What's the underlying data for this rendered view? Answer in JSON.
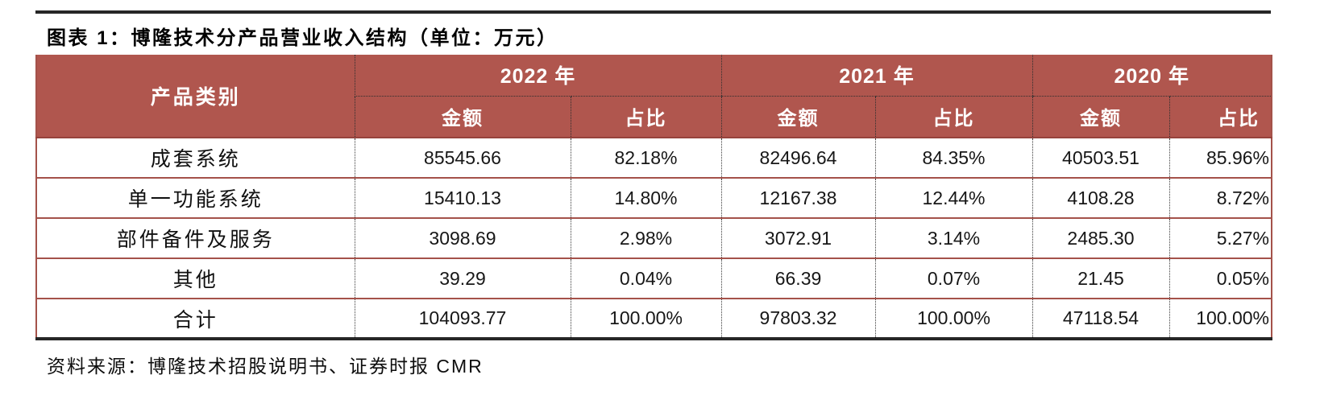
{
  "title": "图表 1：博隆技术分产品营业收入结构（单位：万元）",
  "source": "资料来源：博隆技术招股说明书、证券时报 CMR",
  "table": {
    "category_header": "产品类别",
    "years": [
      {
        "label": "2022 年",
        "amount_header": "金额",
        "share_header": "占比"
      },
      {
        "label": "2021 年",
        "amount_header": "金额",
        "share_header": "占比"
      },
      {
        "label": "2020 年",
        "amount_header": "金额",
        "share_header": "占比"
      }
    ],
    "rows": [
      {
        "category": "成套系统",
        "values": [
          "85545.66",
          "82.18%",
          "82496.64",
          "84.35%",
          "40503.51",
          "85.96%"
        ]
      },
      {
        "category": "单一功能系统",
        "values": [
          "15410.13",
          "14.80%",
          "12167.38",
          "12.44%",
          "4108.28",
          "8.72%"
        ]
      },
      {
        "category": "部件备件及服务",
        "values": [
          "3098.69",
          "2.98%",
          "3072.91",
          "3.14%",
          "2485.30",
          "5.27%"
        ]
      },
      {
        "category": "其他",
        "values": [
          "39.29",
          "0.04%",
          "66.39",
          "0.07%",
          "21.45",
          "0.05%"
        ]
      },
      {
        "category": "合计",
        "values": [
          "104093.77",
          "100.00%",
          "97803.32",
          "100.00%",
          "47118.54",
          "100.00%"
        ]
      }
    ]
  },
  "colors": {
    "header_bg": "#b0564e",
    "header_divider": "#96433c",
    "row_line": "#a4524a",
    "rule_black": "#262626",
    "header_text": "#ffffff",
    "text_dark": "#111111"
  }
}
